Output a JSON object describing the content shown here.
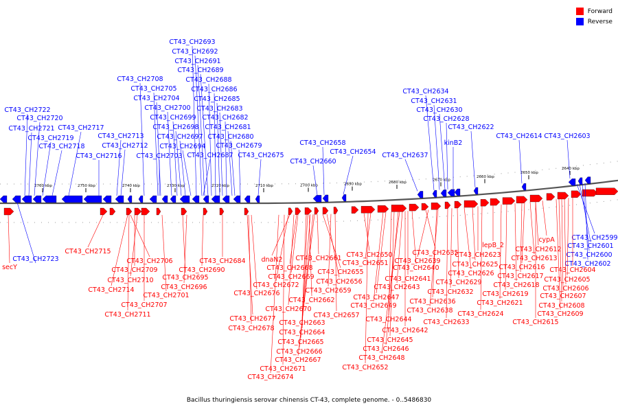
{
  "legend": {
    "forward": {
      "label": "Forward",
      "color": "#ff0000"
    },
    "reverse": {
      "label": "Reverse",
      "color": "#0000ff"
    }
  },
  "caption": "Bacillus thuringiensis serovar chinensis CT-43, complete genome. - 0..5486830",
  "ticks": [
    "2760 kbp",
    "2750 kbp",
    "2740 kbp",
    "2730 kbp",
    "2720 kbp",
    "2710 kbp",
    "2700 kbp",
    "2690 kbp",
    "2680 kbp",
    "2670 kbp",
    "2660 kbp",
    "2650 kbp",
    "2640 kbp"
  ],
  "reverse_labels": [
    "CT43_CH2693",
    "CT43_CH2692",
    "CT43_CH2691",
    "CT43_CH2689",
    "CT43_CH2688",
    "CT43_CH2708",
    "CT43_CH2686",
    "CT43_CH2705",
    "CT43_CH2685",
    "CT43_CH2704",
    "CT43_CH2700",
    "CT43_CH2683",
    "CT43_CH2722",
    "CT43_CH2720",
    "CT43_CH2699",
    "CT43_CH2682",
    "CT43_CH2721",
    "CT43_CH2717",
    "CT43_CH2698",
    "CT43_CH2681",
    "CT43_CH2719",
    "CT43_CH2713",
    "CT43_CH2697",
    "CT43_CH2680",
    "CT43_CH2718",
    "CT43_CH2712",
    "CT43_CH2694",
    "CT43_CH2679",
    "CT43_CH2716",
    "CT43_CH2703",
    "CT43_CH2687",
    "CT43_CH2675",
    "CT43_CH2658",
    "CT43_CH2654",
    "CT43_CH2660",
    "CT43_CH2634",
    "CT43_CH2631",
    "CT43_CH2630",
    "CT43_CH2628",
    "CT43_CH2622",
    "CT43_CH2614",
    "CT43_CH2603",
    "kinB2",
    "CT43_CH2637",
    "CT43_CH2723",
    "CT43_CH2599",
    "CT43_CH2601",
    "CT43_CH2600",
    "CT43_CH2602"
  ],
  "forward_labels": [
    "secY",
    "CT43_CH2715",
    "CT43_CH2706",
    "CT43_CH2709",
    "CT43_CH2710",
    "CT43_CH2714",
    "CT43_CH2707",
    "CT43_CH2711",
    "CT43_CH2684",
    "CT43_CH2690",
    "CT43_CH2695",
    "CT43_CH2696",
    "CT43_CH2701",
    "dnaN2",
    "CT43_CH2661",
    "CT43_CH2668",
    "CT43_CH2669",
    "CT43_CH2672",
    "CT43_CH2676",
    "CT43_CH2670",
    "CT43_CH2662",
    "CT43_CH2677",
    "CT43_CH2678",
    "CT43_CH2663",
    "CT43_CH2664",
    "CT43_CH2665",
    "CT43_CH2666",
    "CT43_CH2667",
    "CT43_CH2671",
    "CT43_CH2674",
    "CT43_CH2655",
    "CT43_CH2656",
    "CT43_CH2659",
    "CT43_CH2657",
    "CT43_CH2650",
    "CT43_CH2651",
    "CT43_CH2640",
    "CT43_CH2641",
    "CT43_CH2643",
    "CT43_CH2647",
    "CT43_CH2649",
    "CT43_CH2644",
    "CT43_CH2642",
    "CT43_CH2645",
    "CT43_CH2646",
    "CT43_CH2648",
    "CT43_CH2652",
    "CT43_CH2635",
    "CT43_CH2639",
    "CT43_CH2636",
    "CT43_CH2638",
    "CT43_CH2633",
    "CT43_CH2632",
    "CT43_CH2629",
    "CT43_CH2626",
    "CT43_CH2625",
    "CT43_CH2623",
    "lepB_2",
    "CT43_CH2624",
    "CT43_CH2621",
    "CT43_CH2619",
    "CT43_CH2618",
    "CT43_CH2617",
    "CT43_CH2616",
    "CT43_CH2615",
    "CT43_CH2613",
    "CT43_CH2612",
    "cypA",
    "CT43_CH2609",
    "CT43_CH2608",
    "CT43_CH2607",
    "CT43_CH2606",
    "CT43_CH2605",
    "CT43_CH2604"
  ]
}
